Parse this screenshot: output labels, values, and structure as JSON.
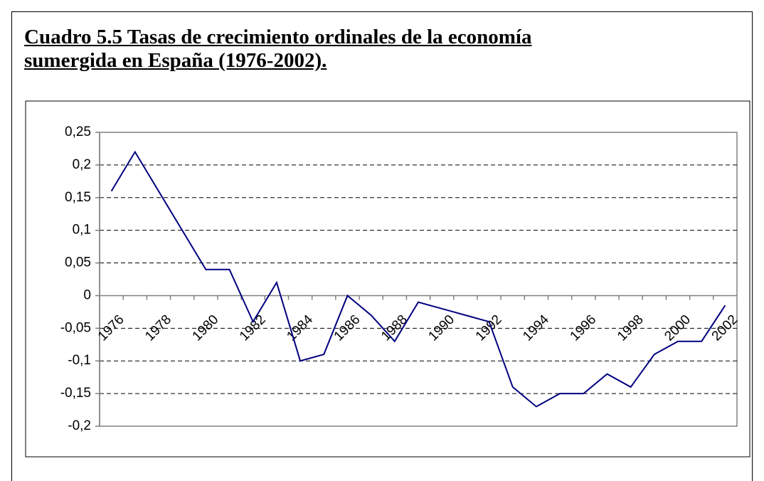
{
  "chart_data": {
    "type": "line",
    "title": "Cuadro 5.5 Tasas de crecimiento ordinales de la economía sumergida en España (1976-2002).",
    "categories": [
      "1976",
      null,
      "1978",
      null,
      "1980",
      null,
      "1982",
      null,
      "1984",
      null,
      "1986",
      null,
      "1988",
      null,
      "1990",
      null,
      "1992",
      null,
      "1994",
      null,
      "1996",
      null,
      "1998",
      null,
      "2000",
      null,
      "2002"
    ],
    "values": [
      0.16,
      0.22,
      0.16,
      0.1,
      0.04,
      0.04,
      -0.04,
      0.02,
      -0.1,
      -0.09,
      0.0,
      -0.03,
      -0.07,
      -0.01,
      -0.02,
      -0.03,
      -0.04,
      -0.14,
      -0.17,
      -0.15,
      -0.15,
      -0.12,
      -0.14,
      -0.09,
      -0.07,
      -0.07,
      -0.015
    ],
    "color": "#000080",
    "ylim": [
      -0.2,
      0.25
    ],
    "yticks": [
      {
        "value": -0.2,
        "label": "-0,2"
      },
      {
        "value": -0.15,
        "label": "-0,15"
      },
      {
        "value": -0.1,
        "label": "-0,1"
      },
      {
        "value": -0.05,
        "label": "-0,05"
      },
      0,
      {
        "value": 0.05,
        "label": "0,05"
      },
      {
        "value": 0.1,
        "label": "0,1"
      },
      {
        "value": 0.15,
        "label": "0,15"
      },
      {
        "value": 0.2,
        "label": "0,2"
      },
      {
        "value": 0.25,
        "label": "0,25"
      }
    ],
    "grid": true
  }
}
